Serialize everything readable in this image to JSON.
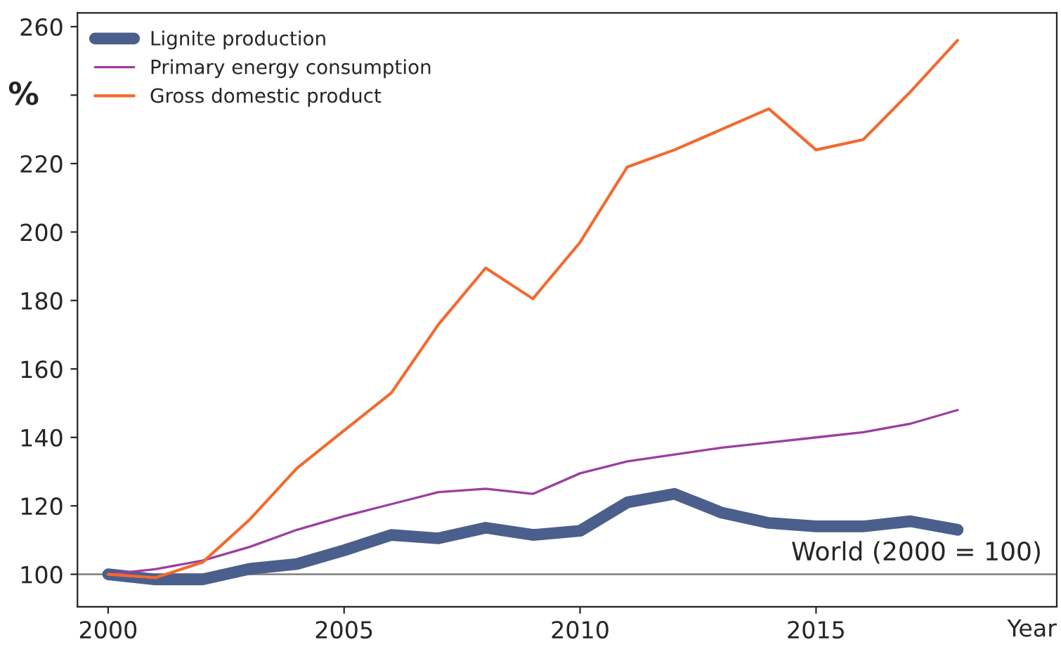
{
  "chart_data": {
    "type": "line",
    "xlabel": "Year",
    "ylabel": "%",
    "x": [
      2000,
      2001,
      2002,
      2003,
      2004,
      2005,
      2006,
      2007,
      2008,
      2009,
      2010,
      2011,
      2012,
      2013,
      2014,
      2015,
      2016,
      2017,
      2018
    ],
    "series": [
      {
        "name": "Lignite production",
        "color": "#4a5f8c",
        "values": [
          100,
          98.5,
          98.5,
          101.6,
          103,
          107,
          111.5,
          110.5,
          113.6,
          111.5,
          112.7,
          121,
          123.5,
          118,
          115,
          114,
          114,
          115.5,
          113
        ]
      },
      {
        "name": "Primary energy consumption",
        "color": "#9b3fa0",
        "values": [
          100,
          101.5,
          104,
          108,
          113,
          117,
          120.5,
          124,
          125,
          123.5,
          129.5,
          133,
          135,
          137,
          138.5,
          140,
          141.5,
          144,
          148
        ]
      },
      {
        "name": "Gross domestic product",
        "color": "#f26a2e",
        "values": [
          100,
          99,
          103.5,
          116,
          131,
          142,
          153,
          173,
          189.5,
          180.5,
          197,
          219,
          224,
          230,
          236,
          224,
          227,
          241,
          256
        ]
      }
    ],
    "xlim": [
      1999.35,
      2020.1
    ],
    "xticks": [
      2000,
      2005,
      2010,
      2015
    ],
    "ylim": [
      90.5,
      264
    ],
    "yticks": [
      100,
      120,
      140,
      160,
      180,
      200,
      220,
      {
        "value": 240,
        "label": null
      },
      260
    ],
    "ref_lines": [
      {
        "axis": "y",
        "value": 100,
        "color": "#888888"
      }
    ],
    "annotations": [
      "World (2000 = 100)"
    ],
    "legend": "top left",
    "grid": false
  }
}
